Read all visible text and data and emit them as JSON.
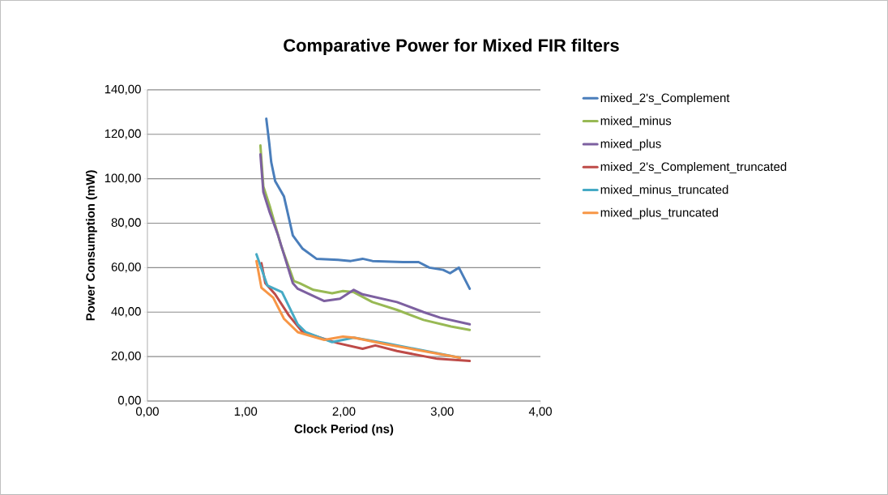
{
  "chart_data": {
    "type": "line",
    "title": "Comparative Power for Mixed FIR filters",
    "xlabel": "Clock Period (ns)",
    "ylabel": "Power Consumption (mW)",
    "xlim": [
      0,
      4
    ],
    "ylim": [
      0,
      140
    ],
    "xticks": [
      {
        "value": 0,
        "label": "0,00"
      },
      {
        "value": 1,
        "label": "1,00"
      },
      {
        "value": 2,
        "label": "2,00"
      },
      {
        "value": 3,
        "label": "3,00"
      },
      {
        "value": 4,
        "label": "4,00"
      }
    ],
    "yticks": [
      {
        "value": 0,
        "label": "0,00"
      },
      {
        "value": 20,
        "label": "20,00"
      },
      {
        "value": 40,
        "label": "40,00"
      },
      {
        "value": 60,
        "label": "60,00"
      },
      {
        "value": 80,
        "label": "80,00"
      },
      {
        "value": 100,
        "label": "100,00"
      },
      {
        "value": 120,
        "label": "120,00"
      },
      {
        "value": 140,
        "label": "140,00"
      }
    ],
    "grid": "y",
    "legend": "right",
    "marker": "none",
    "line_style": "solid",
    "series": [
      {
        "name": "mixed_2's_Complement",
        "color": "#4a7ebb",
        "x": [
          1.21,
          1.24,
          1.26,
          1.3,
          1.39,
          1.48,
          1.58,
          1.72,
          1.94,
          2.07,
          2.19,
          2.29,
          2.6,
          2.76,
          2.87,
          3.01,
          3.08,
          3.17,
          3.28
        ],
        "values": [
          127,
          116,
          107.5,
          99,
          92,
          74.5,
          68.5,
          64,
          63.5,
          63,
          64,
          63,
          62.5,
          62.5,
          60,
          59,
          57.5,
          60,
          50.5
        ]
      },
      {
        "name": "mixed_minus",
        "color": "#98b954",
        "x": [
          1.15,
          1.18,
          1.25,
          1.36,
          1.49,
          1.55,
          1.69,
          1.88,
          1.99,
          2.1,
          2.29,
          2.54,
          2.81,
          3.09,
          3.28
        ],
        "values": [
          115,
          96.5,
          87,
          70,
          54,
          53,
          50,
          48.5,
          49.5,
          49,
          44.5,
          41,
          36.5,
          33.5,
          32
        ]
      },
      {
        "name": "mixed_plus",
        "color": "#7d60a0",
        "x": [
          1.15,
          1.18,
          1.24,
          1.33,
          1.48,
          1.53,
          1.8,
          1.96,
          2.1,
          2.19,
          2.54,
          2.81,
          2.98,
          3.28
        ],
        "values": [
          111,
          94,
          85.5,
          74.5,
          53,
          50.5,
          45,
          46,
          50,
          48,
          44.5,
          40,
          37.5,
          34.5
        ]
      },
      {
        "name": "mixed_2's_Complement_truncated",
        "color": "#be4b48",
        "x": [
          1.16,
          1.2,
          1.3,
          1.44,
          1.58,
          1.94,
          2.19,
          2.32,
          2.54,
          2.95,
          3.28
        ],
        "values": [
          62,
          53,
          48,
          38.5,
          31,
          26,
          23.5,
          25,
          22.5,
          19,
          18
        ]
      },
      {
        "name": "mixed_minus_truncated",
        "color": "#46aac5",
        "x": [
          1.11,
          1.22,
          1.37,
          1.53,
          1.61,
          1.88,
          2.1,
          2.43,
          3.18
        ],
        "values": [
          66,
          52,
          49,
          34.5,
          31,
          26.5,
          28.5,
          26,
          19.5
        ]
      },
      {
        "name": "mixed_plus_truncated",
        "color": "#f79646",
        "x": [
          1.11,
          1.16,
          1.28,
          1.39,
          1.53,
          1.8,
          1.99,
          2.1,
          2.43,
          3.18
        ],
        "values": [
          63,
          51,
          46.5,
          37,
          31,
          27.5,
          29,
          28.5,
          25.5,
          19.5
        ]
      }
    ]
  }
}
